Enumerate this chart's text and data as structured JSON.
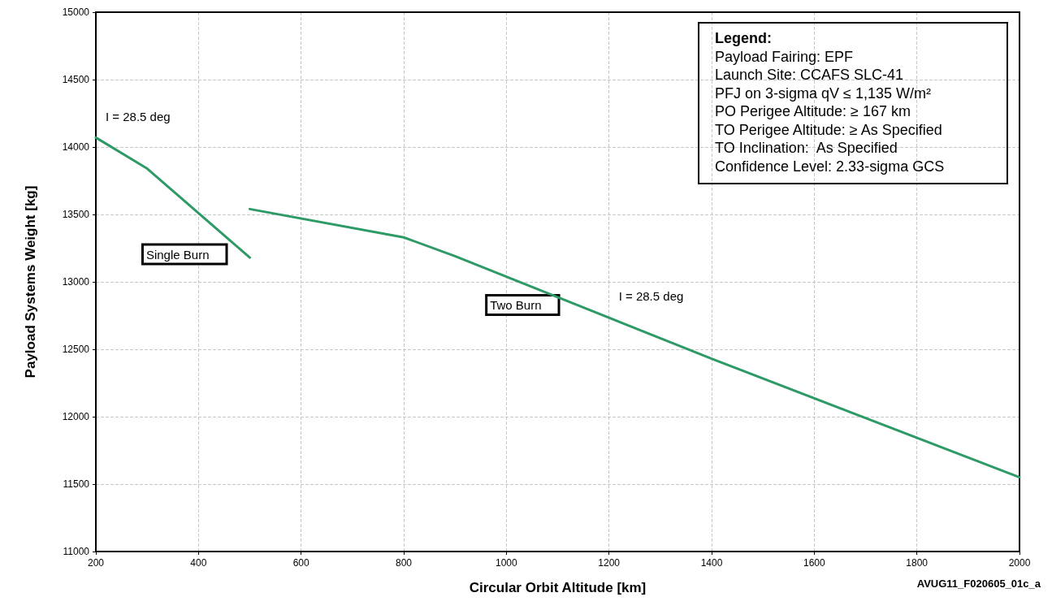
{
  "chart_data": {
    "type": "line",
    "xlabel": "Circular Orbit Altitude [km]",
    "ylabel": "Payload Systems Weight [kg]",
    "xlim": [
      200,
      2000
    ],
    "xticks": [
      200,
      400,
      600,
      800,
      1000,
      1200,
      1400,
      1600,
      1800,
      2000
    ],
    "ylim": [
      11000,
      15000
    ],
    "yticks": [
      11000,
      11500,
      12000,
      12500,
      13000,
      13500,
      14000,
      14500,
      15000
    ],
    "grid": true,
    "line_style": "solid",
    "marker": "none",
    "series": [
      {
        "name": "Single Burn",
        "color": "#2e9a66",
        "x": [
          200,
          300,
          400,
          500
        ],
        "values": [
          14070,
          13840,
          13510,
          13180
        ]
      },
      {
        "name": "Two Burn",
        "color": "#2e9a66",
        "x": [
          500,
          800,
          900,
          1400,
          2000
        ],
        "values": [
          13540,
          13330,
          13190,
          12430,
          11550
        ]
      }
    ],
    "annotations": [
      "Legend:",
      "Payload Fairing: EPF",
      "Launch Site: CCAFS SLC-41",
      "PFJ on 3-sigma qV ≤ 1,135 W/m²",
      "PO Perigee Altitude: ≥ 167 km",
      "TO Perigee Altitude: ≥ As Specified",
      "TO Inclination:  As Specified",
      "Confidence Level: 2.33-sigma GCS",
      {
        "text": "I = 28.5 deg",
        "x": 200,
        "y": 14070
      },
      {
        "text": "I = 28.5 deg",
        "x": 1200,
        "y": 12740
      },
      "AVUG11_F020605_01c_a"
    ]
  }
}
